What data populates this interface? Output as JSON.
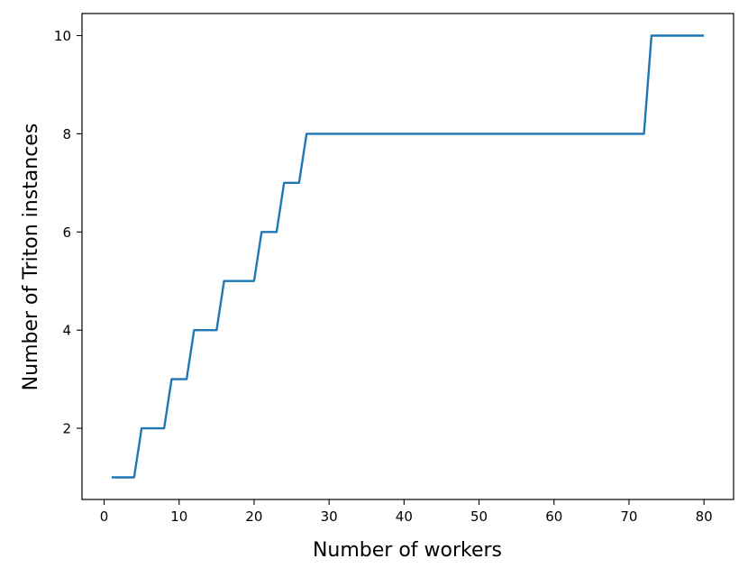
{
  "chart_data": {
    "type": "line",
    "title": "",
    "xlabel": "Number of workers",
    "ylabel": "Number of Triton instances",
    "xlim": [
      -2.95,
      83.95
    ],
    "ylim": [
      0.55,
      10.45
    ],
    "xticks": [
      0,
      10,
      20,
      30,
      40,
      50,
      60,
      70,
      80
    ],
    "yticks": [
      2,
      4,
      6,
      8,
      10
    ],
    "grid": false,
    "legend": "none",
    "series": [
      {
        "color": "#1f77b4",
        "x": [
          1,
          2,
          3,
          4,
          5,
          6,
          7,
          8,
          9,
          10,
          11,
          12,
          13,
          14,
          15,
          16,
          17,
          18,
          19,
          20,
          21,
          22,
          23,
          24,
          25,
          26,
          27,
          28,
          29,
          30,
          31,
          32,
          33,
          34,
          35,
          36,
          37,
          38,
          39,
          40,
          41,
          42,
          43,
          44,
          45,
          46,
          47,
          48,
          49,
          50,
          51,
          52,
          53,
          54,
          55,
          56,
          57,
          58,
          59,
          60,
          61,
          62,
          63,
          64,
          65,
          66,
          67,
          68,
          69,
          70,
          71,
          72,
          73,
          74,
          75,
          76,
          77,
          78,
          79,
          80
        ],
        "y": [
          1,
          1,
          1,
          1,
          2,
          2,
          2,
          2,
          3,
          3,
          3,
          4,
          4,
          4,
          4,
          5,
          5,
          5,
          5,
          5,
          6,
          6,
          6,
          7,
          7,
          7,
          8,
          8,
          8,
          8,
          8,
          8,
          8,
          8,
          8,
          8,
          8,
          8,
          8,
          8,
          8,
          8,
          8,
          8,
          8,
          8,
          8,
          8,
          8,
          8,
          8,
          8,
          8,
          8,
          8,
          8,
          8,
          8,
          8,
          8,
          8,
          8,
          8,
          8,
          8,
          8,
          8,
          8,
          8,
          8,
          8,
          8,
          10,
          10,
          10,
          10,
          10,
          10,
          10,
          10
        ]
      }
    ]
  }
}
